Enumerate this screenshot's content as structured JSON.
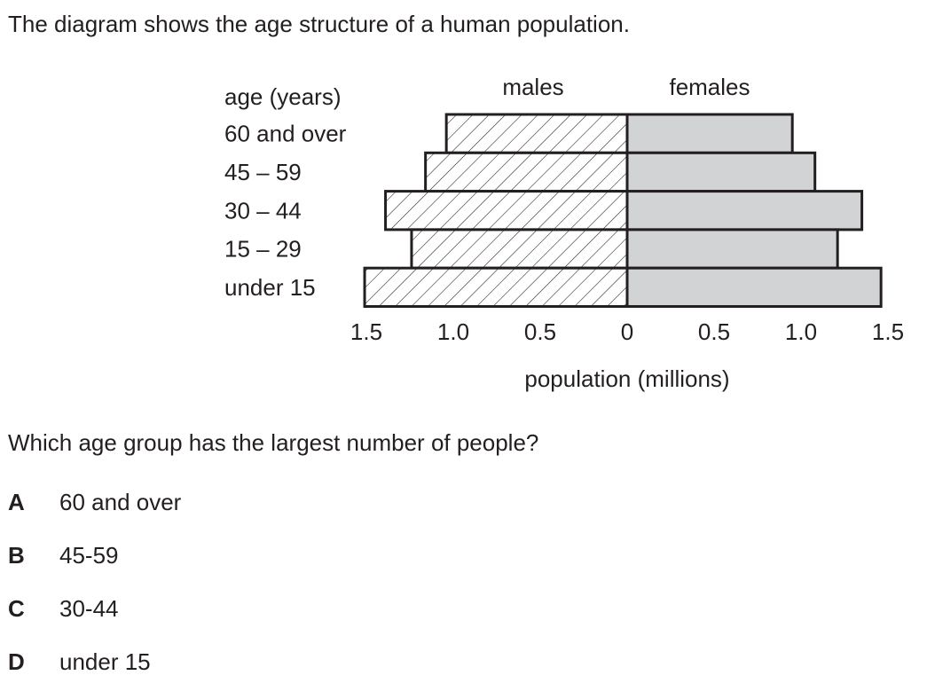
{
  "intro": "The diagram shows the age structure of a human population.",
  "chart_data": {
    "type": "bar",
    "orientation": "horizontal",
    "subtype": "population pyramid",
    "y_title": "age (years)",
    "xlabel": "population (millions)",
    "categories": [
      "60 and over",
      "45 – 59",
      "30 – 44",
      "15 – 29",
      "under 15"
    ],
    "series": [
      {
        "name": "males",
        "values": [
          1.04,
          1.16,
          1.39,
          1.24,
          1.51
        ],
        "fill": "hatched",
        "color": "#231f20"
      },
      {
        "name": "females",
        "values": [
          0.95,
          1.08,
          1.35,
          1.21,
          1.46
        ],
        "fill": "solid",
        "color": "#d1d3d4"
      }
    ],
    "xlim": [
      -1.5,
      1.5
    ],
    "x_ticks": [
      "1.5",
      "1.0",
      "0.5",
      "0",
      "0.5",
      "1.0",
      "1.5"
    ],
    "grid": false,
    "legend": "none"
  },
  "question": "Which age group has the largest number of people?",
  "options": [
    {
      "letter": "A",
      "text": "60 and over"
    },
    {
      "letter": "B",
      "text": "45-59"
    },
    {
      "letter": "C",
      "text": "30-44"
    },
    {
      "letter": "D",
      "text": "under 15"
    }
  ]
}
